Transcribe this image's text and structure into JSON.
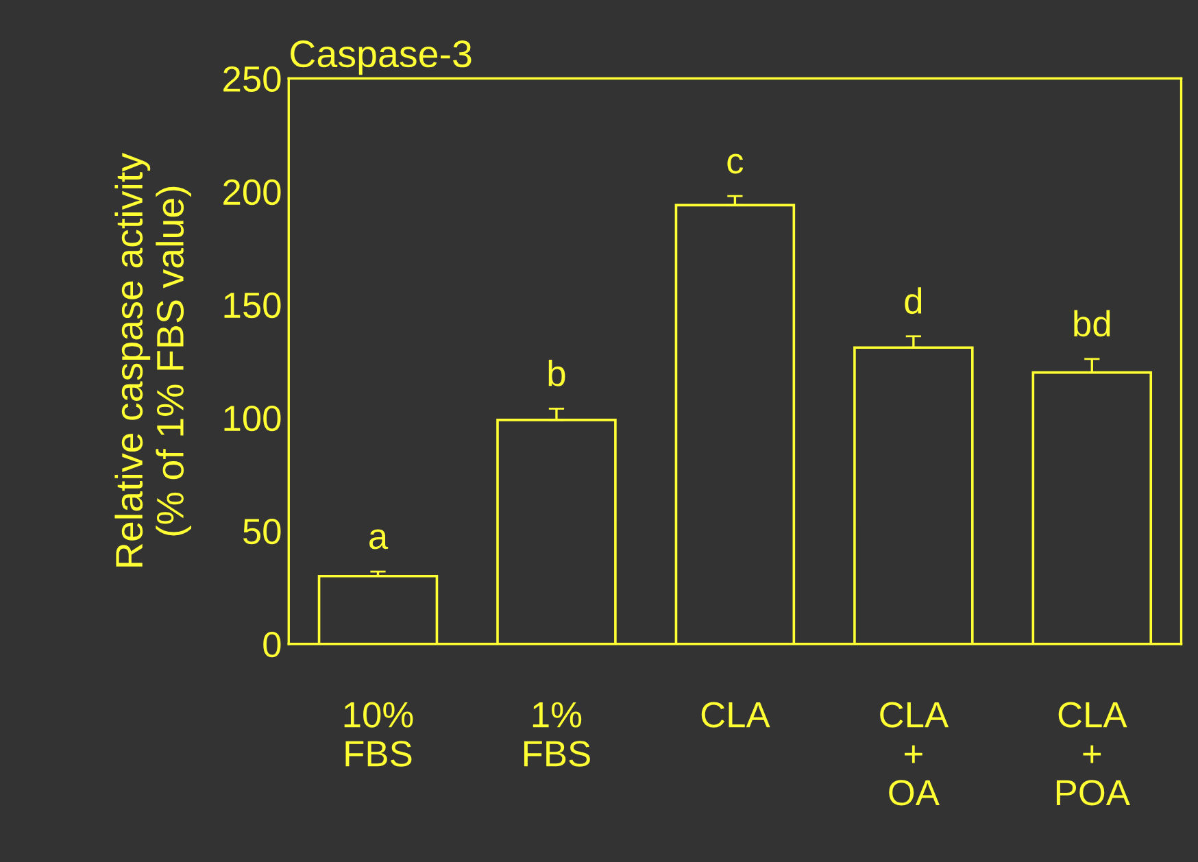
{
  "chart_data": {
    "type": "bar",
    "title": "Caspase-3",
    "ylabel": "Relative caspase activity\n(% of 1% FBS value)",
    "categories": [
      "10%\nFBS",
      "1%\nFBS",
      "CLA",
      "CLA\n+\nOA",
      "CLA\n+\nPOA"
    ],
    "values": [
      30,
      99,
      194,
      131,
      120
    ],
    "errors": [
      2,
      5,
      4,
      5,
      6
    ],
    "color": "#ffff33",
    "ylim": [
      0,
      250
    ],
    "yticks": [
      0,
      50,
      100,
      150,
      200,
      250
    ],
    "grid": false,
    "legend": false,
    "annotations": [
      {
        "text": "a",
        "x": "10%\nFBS",
        "y": 32
      },
      {
        "text": "b",
        "x": "1%\nFBS",
        "y": 104
      },
      {
        "text": "c",
        "x": "CLA",
        "y": 198
      },
      {
        "text": "d",
        "x": "CLA\n+\nOA",
        "y": 136
      },
      {
        "text": "bd",
        "x": "CLA\n+\nPOA",
        "y": 126
      }
    ]
  }
}
